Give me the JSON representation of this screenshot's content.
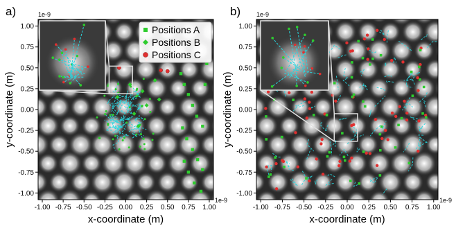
{
  "chart_data": [
    {
      "panel_label": "a)",
      "type": "scatter",
      "xlabel": "x-coordinate (m)",
      "ylabel": "y-coordinate (m)",
      "x_scale_note": "1e-9",
      "y_scale_note": "1e-9",
      "xlim": [
        -1.05,
        1.05
      ],
      "ylim": [
        -1.08,
        1.08
      ],
      "xticks": [
        "-1.00",
        "-0.75",
        "-0.50",
        "-0.25",
        "0.00",
        "0.25",
        "0.50",
        "0.75",
        "1.00"
      ],
      "yticks": [
        "1.00",
        "0.75",
        "0.50",
        "0.25",
        "0.00",
        "-0.25",
        "-0.50",
        "-0.75",
        "-1.00"
      ],
      "legend": {
        "placement": "top-right",
        "entries": [
          {
            "label": "Positions A",
            "marker": "square",
            "color": "#2ecc2e"
          },
          {
            "label": "Positions B",
            "marker": "diamond",
            "color": "#2ecc2e"
          },
          {
            "label": "Positions C",
            "marker": "circle",
            "color": "#e03030"
          }
        ]
      },
      "series": [
        {
          "name": "Positions A",
          "color": "#2ecc2e",
          "points": [
            [
              0.66,
              0.43
            ],
            [
              0.7,
              0.3
            ],
            [
              0.75,
              0.18
            ],
            [
              0.8,
              0.05
            ],
            [
              0.85,
              -0.08
            ],
            [
              0.92,
              -0.2
            ],
            [
              0.68,
              -0.22
            ],
            [
              0.73,
              -0.35
            ],
            [
              0.8,
              -0.48
            ],
            [
              0.86,
              -0.6
            ],
            [
              0.92,
              -0.72
            ],
            [
              0.7,
              -0.62
            ],
            [
              0.75,
              -0.75
            ],
            [
              0.82,
              -0.88
            ],
            [
              0.9,
              -0.98
            ],
            [
              0.95,
              0.3
            ],
            [
              0.97,
              0.55
            ]
          ]
        },
        {
          "name": "Positions B",
          "color": "#2ecc2e",
          "points": [
            [
              0.05,
              0.3
            ],
            [
              0.2,
              0.22
            ],
            [
              0.35,
              0.35
            ],
            [
              -0.1,
              0.15
            ],
            [
              0.1,
              -0.05
            ],
            [
              0.25,
              0.05
            ],
            [
              0.4,
              0.12
            ],
            [
              0.15,
              -0.2
            ]
          ]
        },
        {
          "name": "Positions C",
          "color": "#e03030",
          "points": [
            [
              0.42,
              0.47
            ],
            [
              0.5,
              0.46
            ],
            [
              -0.08,
              0.5
            ],
            [
              0.25,
              0.6
            ]
          ]
        }
      ],
      "trajectory_color": "#27d7e0",
      "trajectory_center": [
        0.0,
        -0.08
      ]
    },
    {
      "panel_label": "b)",
      "type": "scatter",
      "xlabel": "x-coordinate (m)",
      "ylabel": "y-coordinate (m)",
      "x_scale_note": "1e-9",
      "y_scale_note": "1e-9",
      "xlim": [
        -1.05,
        1.05
      ],
      "ylim": [
        -1.08,
        1.08
      ],
      "xticks": [
        "-1.00",
        "-0.75",
        "-0.50",
        "-0.25",
        "0.00",
        "0.25",
        "0.50",
        "0.75",
        "1.00"
      ],
      "yticks": [
        "1.00",
        "0.75",
        "0.50",
        "0.25",
        "0.00",
        "-0.25",
        "-0.50",
        "-0.75",
        "-1.00"
      ],
      "trajectory_color": "#27d7e0"
    }
  ]
}
